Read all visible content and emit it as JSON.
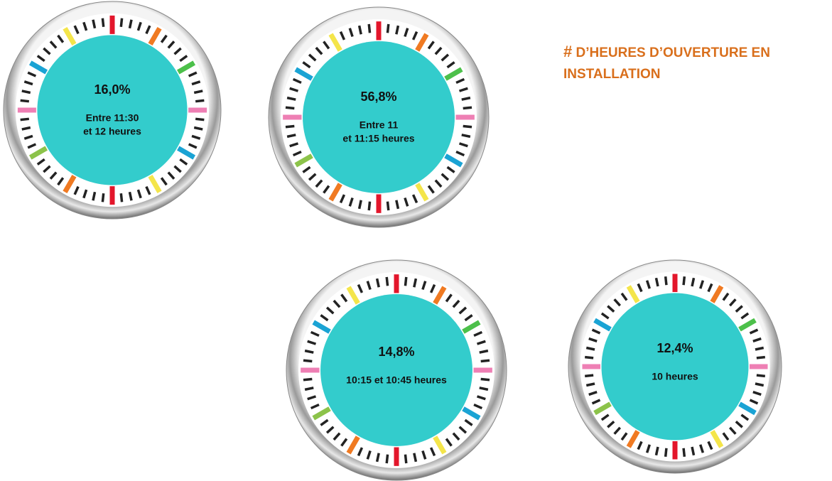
{
  "title": {
    "hash": "#",
    "text": "D’HEURES D’OUVERTURE EN INSTALLATION"
  },
  "dials": [
    {
      "value": "16,0%",
      "label_lines": [
        "Entre 11:30",
        "et 12 heures"
      ]
    },
    {
      "value": "56,8%",
      "label_lines": [
        "Entre 11",
        "et 11:15 heures"
      ]
    },
    {
      "value": "14,8%",
      "label_lines": [
        "10:15 et 10:45 heures"
      ]
    },
    {
      "value": "12,4%",
      "label_lines": [
        "10 heures"
      ]
    }
  ]
}
